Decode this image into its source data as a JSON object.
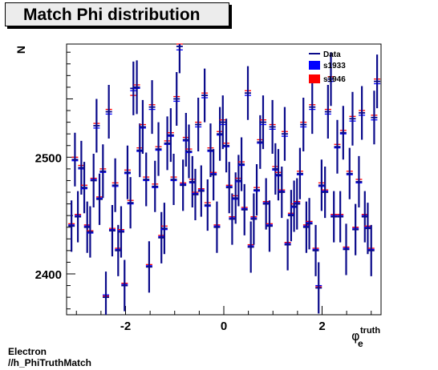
{
  "title": "Match Phi distribution",
  "footer": {
    "line1": "Electron",
    "line2": "//h_PhiTruthMatch"
  },
  "chart_data": {
    "type": "scatter",
    "title": "Match Phi distribution",
    "ylabel": "N",
    "xlabel_main": "φ",
    "xlabel_sub": "e",
    "xlabel_sup": "truth",
    "xlim": [
      -3.2,
      3.2
    ],
    "ylim": [
      2365,
      2597
    ],
    "xticks": [
      -2,
      0,
      2
    ],
    "xtick_labels": [
      "-2",
      "0",
      "2"
    ],
    "yticks": [
      2400,
      2500
    ],
    "ytick_labels": [
      "2400",
      "2500"
    ],
    "legend": {
      "position": "top-right",
      "entries": [
        "Data",
        "s1933",
        "s1946"
      ]
    },
    "colors": {
      "data": "#0a0a8a",
      "s1933": "#0000ff",
      "s1946": "#ff0000"
    },
    "series": [
      {
        "name": "Data",
        "x": [
          -3.1,
          -3.03,
          -2.97,
          -2.9,
          -2.84,
          -2.78,
          -2.72,
          -2.65,
          -2.59,
          -2.53,
          -2.46,
          -2.4,
          -2.34,
          -2.27,
          -2.21,
          -2.15,
          -2.09,
          -2.02,
          -1.96,
          -1.9,
          -1.84,
          -1.77,
          -1.71,
          -1.65,
          -1.58,
          -1.52,
          -1.46,
          -1.4,
          -1.33,
          -1.27,
          -1.21,
          -1.15,
          -1.08,
          -1.02,
          -0.96,
          -0.9,
          -0.83,
          -0.77,
          -0.71,
          -0.64,
          -0.58,
          -0.52,
          -0.46,
          -0.39,
          -0.33,
          -0.27,
          -0.21,
          -0.14,
          -0.08,
          -0.02,
          0.05,
          0.11,
          0.17,
          0.24,
          0.3,
          0.36,
          0.42,
          0.49,
          0.55,
          0.61,
          0.67,
          0.74,
          0.8,
          0.86,
          0.93,
          0.99,
          1.05,
          1.11,
          1.18,
          1.24,
          1.3,
          1.37,
          1.43,
          1.49,
          1.55,
          1.62,
          1.68,
          1.74,
          1.8,
          1.87,
          1.93,
          1.99,
          2.06,
          2.12,
          2.18,
          2.24,
          2.31,
          2.37,
          2.43,
          2.49,
          2.56,
          2.62,
          2.68,
          2.75,
          2.81,
          2.87,
          2.93,
          3.0,
          3.06,
          3.12
        ],
        "y": [
          2441,
          2498,
          2449,
          2491,
          2474,
          2440,
          2436,
          2480,
          2527,
          2464,
          2488,
          2380,
          2539,
          2437,
          2476,
          2420,
          2436,
          2390,
          2487,
          2461,
          2559,
          2560,
          2506,
          2526,
          2481,
          2406,
          2543,
          2475,
          2507,
          2431,
          2439,
          2512,
          2519,
          2481,
          2550,
          2595,
          2476,
          2515,
          2505,
          2479,
          2468,
          2528,
          2471,
          2553,
          2459,
          2506,
          2485,
          2440,
          2520,
          2530,
          2510,
          2474,
          2447,
          2465,
          2480,
          2494,
          2455,
          2555,
          2423,
          2447,
          2472,
          2513,
          2530,
          2460,
          2441,
          2526,
          2490,
          2485,
          2470,
          2520,
          2425,
          2450,
          2458,
          2460,
          2486,
          2528,
          2440,
          2443,
          2543,
          2420,
          2388,
          2476,
          2470,
          2539,
          2567,
          2449,
          2509,
          2449,
          2521,
          2421,
          2486,
          2533,
          2438,
          2479,
          2538,
          2449,
          2439,
          2420,
          2534,
          2565
        ],
        "err": [
          22,
          23,
          22,
          23,
          22,
          22,
          22,
          23,
          23,
          22,
          23,
          22,
          23,
          22,
          23,
          22,
          22,
          22,
          23,
          22,
          23,
          23,
          23,
          23,
          23,
          22,
          23,
          22,
          23,
          22,
          22,
          23,
          23,
          22,
          23,
          23,
          22,
          23,
          23,
          22,
          22,
          23,
          22,
          23,
          22,
          23,
          22,
          22,
          23,
          23,
          23,
          22,
          22,
          22,
          22,
          23,
          22,
          23,
          22,
          22,
          22,
          23,
          23,
          22,
          22,
          23,
          22,
          22,
          22,
          23,
          22,
          22,
          22,
          22,
          22,
          23,
          22,
          22,
          23,
          22,
          22,
          22,
          22,
          23,
          23,
          22,
          23,
          22,
          23,
          22,
          22,
          23,
          22,
          22,
          23,
          22,
          22,
          22,
          23,
          23
        ]
      },
      {
        "name": "s1933",
        "y": [
          2442,
          2497,
          2450,
          2490,
          2473,
          2441,
          2435,
          2481,
          2525,
          2465,
          2487,
          2382,
          2537,
          2438,
          2475,
          2421,
          2437,
          2391,
          2486,
          2460,
          2557,
          2559,
          2505,
          2525,
          2480,
          2407,
          2541,
          2474,
          2506,
          2432,
          2438,
          2511,
          2518,
          2480,
          2548,
          2592,
          2477,
          2514,
          2504,
          2478,
          2469,
          2526,
          2472,
          2551,
          2458,
          2505,
          2486,
          2441,
          2519,
          2528,
          2509,
          2475,
          2448,
          2464,
          2479,
          2493,
          2456,
          2553,
          2424,
          2448,
          2471,
          2512,
          2528,
          2461,
          2442,
          2524,
          2489,
          2484,
          2471,
          2518,
          2426,
          2451,
          2457,
          2461,
          2485,
          2526,
          2441,
          2444,
          2541,
          2421,
          2390,
          2475,
          2471,
          2537,
          2565,
          2450,
          2508,
          2450,
          2520,
          2422,
          2485,
          2531,
          2439,
          2478,
          2536,
          2450,
          2440,
          2421,
          2532,
          2563
        ]
      },
      {
        "name": "s1946",
        "y": [
          2443,
          2500,
          2451,
          2493,
          2476,
          2442,
          2437,
          2482,
          2529,
          2466,
          2490,
          2381,
          2541,
          2439,
          2478,
          2422,
          2438,
          2392,
          2489,
          2463,
          2553,
          2562,
          2508,
          2528,
          2483,
          2408,
          2545,
          2477,
          2509,
          2433,
          2441,
          2514,
          2521,
          2483,
          2552,
          2597,
          2478,
          2517,
          2507,
          2481,
          2470,
          2530,
          2473,
          2555,
          2461,
          2508,
          2487,
          2442,
          2522,
          2532,
          2512,
          2476,
          2449,
          2467,
          2482,
          2496,
          2457,
          2557,
          2425,
          2449,
          2474,
          2515,
          2532,
          2462,
          2443,
          2528,
          2492,
          2487,
          2472,
          2522,
          2427,
          2452,
          2460,
          2462,
          2488,
          2530,
          2442,
          2445,
          2545,
          2422,
          2389,
          2478,
          2472,
          2541,
          2569,
          2451,
          2511,
          2451,
          2523,
          2423,
          2488,
          2535,
          2440,
          2481,
          2540,
          2451,
          2441,
          2422,
          2536,
          2567
        ]
      }
    ]
  }
}
